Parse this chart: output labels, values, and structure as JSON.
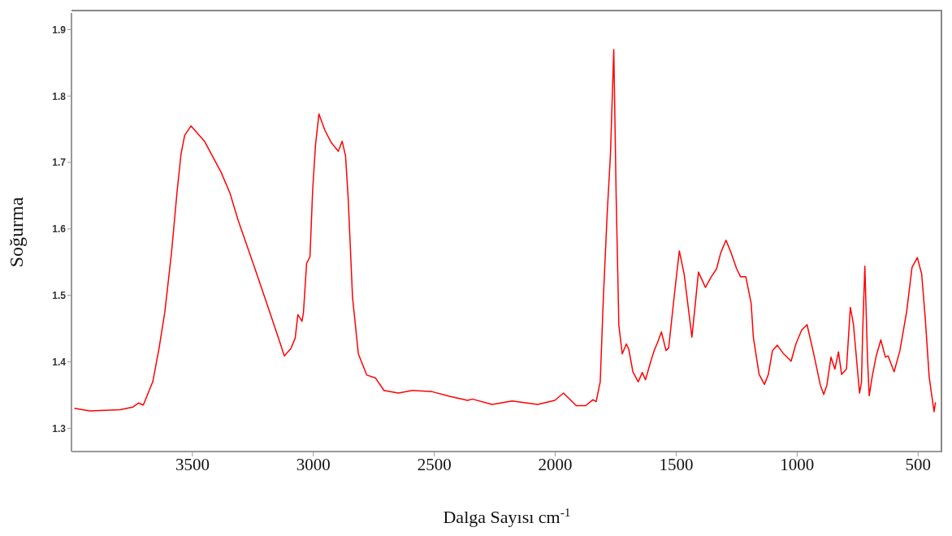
{
  "chart_data": {
    "type": "line",
    "xlabel": "Dalga Sayısı cm$^{-1}$",
    "ylabel": "Soğurma",
    "xlim": [
      4000,
      400
    ],
    "xticks": [
      3500,
      3000,
      2500,
      2000,
      1500,
      1000,
      500
    ],
    "ylim": [
      1.265,
      1.925
    ],
    "yticks": [
      1.3,
      1.4,
      1.5,
      1.6,
      1.7,
      1.8,
      1.9
    ],
    "marker": "none",
    "line_style": "solid",
    "series": [
      {
        "color": "#ff0000",
        "x": [
          3988,
          3924,
          3799,
          3746,
          3723,
          3703,
          3684,
          3664,
          3638,
          3614,
          3586,
          3563,
          3547,
          3532,
          3506,
          3450,
          3381,
          3344,
          3311,
          3245,
          3189,
          3151,
          3120,
          3093,
          3075,
          3064,
          3047,
          3041,
          3028,
          3014,
          3003,
          2991,
          2977,
          2953,
          2926,
          2897,
          2881,
          2867,
          2856,
          2838,
          2814,
          2779,
          2744,
          2708,
          2649,
          2590,
          2508,
          2437,
          2362,
          2343,
          2261,
          2178,
          2072,
          2002,
          1966,
          1913,
          1874,
          1844,
          1831,
          1814,
          1801,
          1785,
          1772,
          1758,
          1748,
          1737,
          1723,
          1706,
          1696,
          1679,
          1657,
          1640,
          1627,
          1608,
          1591,
          1577,
          1561,
          1542,
          1531,
          1509,
          1487,
          1467,
          1435,
          1424,
          1408,
          1379,
          1355,
          1333,
          1316,
          1294,
          1273,
          1250,
          1234,
          1212,
          1190,
          1181,
          1157,
          1135,
          1119,
          1102,
          1082,
          1058,
          1025,
          1005,
          981,
          959,
          932,
          904,
          890,
          877,
          860,
          844,
          829,
          816,
          796,
          780,
          767,
          742,
          734,
          729,
          720,
          709,
          702,
          690,
          673,
          654,
          635,
          624,
          599,
          575,
          547,
          525,
          503,
          485,
          470,
          454,
          434,
          428
        ],
        "values": [
          1.33,
          1.326,
          1.328,
          1.332,
          1.338,
          1.335,
          1.352,
          1.37,
          1.42,
          1.475,
          1.566,
          1.658,
          1.713,
          1.741,
          1.755,
          1.732,
          1.685,
          1.653,
          1.613,
          1.544,
          1.484,
          1.443,
          1.409,
          1.42,
          1.436,
          1.471,
          1.461,
          1.474,
          1.548,
          1.558,
          1.658,
          1.727,
          1.773,
          1.749,
          1.73,
          1.717,
          1.732,
          1.71,
          1.646,
          1.497,
          1.412,
          1.38,
          1.376,
          1.357,
          1.353,
          1.357,
          1.355,
          1.348,
          1.342,
          1.344,
          1.336,
          1.341,
          1.336,
          1.342,
          1.353,
          1.334,
          1.334,
          1.343,
          1.34,
          1.37,
          1.497,
          1.625,
          1.71,
          1.87,
          1.646,
          1.455,
          1.412,
          1.427,
          1.419,
          1.385,
          1.37,
          1.384,
          1.373,
          1.397,
          1.417,
          1.429,
          1.445,
          1.417,
          1.421,
          1.496,
          1.567,
          1.532,
          1.437,
          1.476,
          1.535,
          1.512,
          1.528,
          1.54,
          1.564,
          1.583,
          1.564,
          1.54,
          1.528,
          1.528,
          1.488,
          1.437,
          1.381,
          1.366,
          1.381,
          1.417,
          1.425,
          1.413,
          1.401,
          1.427,
          1.448,
          1.456,
          1.413,
          1.365,
          1.351,
          1.365,
          1.407,
          1.389,
          1.415,
          1.381,
          1.389,
          1.482,
          1.456,
          1.353,
          1.369,
          1.445,
          1.544,
          1.405,
          1.349,
          1.377,
          1.409,
          1.433,
          1.407,
          1.409,
          1.385,
          1.417,
          1.476,
          1.542,
          1.557,
          1.532,
          1.464,
          1.377,
          1.325,
          1.339
        ]
      }
    ]
  }
}
